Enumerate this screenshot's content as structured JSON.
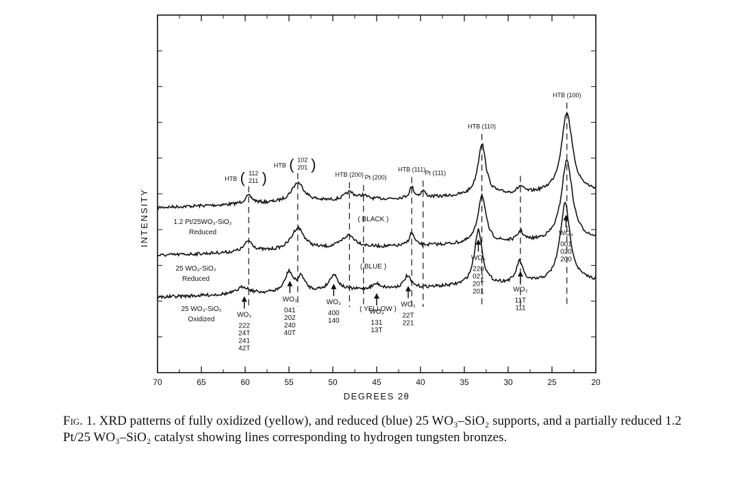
{
  "chart_data": {
    "type": "line",
    "xlabel": "DEGREES 2θ",
    "ylabel": "INTENSITY",
    "xlim": [
      70,
      20
    ],
    "x_ticks": [
      "70",
      "65",
      "60",
      "55",
      "50",
      "45",
      "40",
      "35",
      "30",
      "25",
      "20"
    ],
    "series": [
      {
        "name": "1.2 Pt/25WO3-SiO2 Reduced",
        "label_lines": [
          "1.2 Pt/25WO₃-SiO₂",
          "Reduced"
        ],
        "baseline": 0.0,
        "peaks": [
          [
            59.6,
            0.22,
            0.55
          ],
          [
            54.0,
            0.55,
            0.9
          ],
          [
            48.1,
            0.22,
            0.7
          ],
          [
            46.5,
            0.1,
            0.5
          ],
          [
            41.0,
            0.3,
            0.3
          ],
          [
            39.7,
            0.18,
            0.3
          ],
          [
            33.0,
            1.45,
            0.55
          ],
          [
            28.6,
            0.18,
            0.4
          ],
          [
            23.3,
            2.25,
            0.75
          ]
        ],
        "slope": 0.003
      },
      {
        "name": "25WO3-SiO2 Reduced",
        "label_lines": [
          "25 WO₃-SiO₂",
          "Reduced"
        ],
        "baseline": 0.0,
        "peaks": [
          [
            59.6,
            0.3,
            0.6
          ],
          [
            54.0,
            0.62,
            0.9
          ],
          [
            48.2,
            0.35,
            1.0
          ],
          [
            41.0,
            0.36,
            0.35
          ],
          [
            33.0,
            1.35,
            0.55
          ],
          [
            28.6,
            0.26,
            0.4
          ],
          [
            23.3,
            2.25,
            0.75
          ]
        ],
        "slope": 0.003
      },
      {
        "name": "25WO3-SiO2 Oxidized",
        "label_lines": [
          "25 WO₃-SiO₂",
          "Oxidized"
        ],
        "baseline": 0.0,
        "peaks": [
          [
            60.2,
            0.2,
            0.8
          ],
          [
            55.0,
            0.55,
            0.55
          ],
          [
            53.6,
            0.4,
            0.5
          ],
          [
            49.9,
            0.45,
            0.6
          ],
          [
            45.0,
            0.14,
            0.6
          ],
          [
            41.5,
            0.33,
            0.45
          ],
          [
            33.4,
            1.55,
            0.55
          ],
          [
            28.7,
            0.6,
            0.45
          ],
          [
            23.5,
            2.2,
            0.7
          ]
        ],
        "slope": 0.003
      }
    ],
    "sample_color_labels": [
      "( BLACK )",
      "( BLUE )",
      "( YELLOW )"
    ],
    "htb_annotations": [
      {
        "x": 59.6,
        "label": "HTB",
        "hkl_top": "112",
        "hkl_bottom": "211"
      },
      {
        "x": 54.0,
        "label": "HTB",
        "hkl_top": "102",
        "hkl_bottom": "201"
      },
      {
        "x": 48.1,
        "label": "HTB (200)"
      },
      {
        "x": 46.5,
        "label": "Pt (200)"
      },
      {
        "x": 41.0,
        "label": "HTB (111)"
      },
      {
        "x": 39.7,
        "label": "Pt (111)"
      },
      {
        "x": 33.0,
        "label": "HTB (110)"
      },
      {
        "x": 28.6,
        "label": ""
      },
      {
        "x": 23.3,
        "label": "HTB (100)"
      }
    ],
    "wo3_annotations": [
      {
        "x": 60.1,
        "label": "WO₃",
        "hkl": [
          "222",
          "24T",
          "241",
          "42T"
        ]
      },
      {
        "x": 54.9,
        "label": "WO₃",
        "hkl": [
          "041",
          "202",
          "240",
          "40T"
        ]
      },
      {
        "x": 49.9,
        "label": "WO₃",
        "hkl": [
          "400",
          "140"
        ]
      },
      {
        "x": 45.0,
        "label": "WO₃",
        "hkl": [
          "131",
          "13T"
        ]
      },
      {
        "x": 41.4,
        "label": "WO₃",
        "hkl": [
          "22T",
          "221"
        ]
      },
      {
        "x": 33.4,
        "label": "WO₃",
        "hkl": [
          "220",
          "021",
          "20T",
          "201"
        ]
      },
      {
        "x": 28.6,
        "label": "WO₃",
        "hkl": [
          "11T",
          "111"
        ]
      },
      {
        "x": 23.4,
        "label": "WO₃",
        "hkl": [
          "001",
          "020",
          "200"
        ]
      }
    ]
  },
  "caption": {
    "lead": "Fig. 1.",
    "text": " XRD patterns of fully oxidized (yellow), and reduced (blue) 25 WO₃–SiO₂ supports, and a partially reduced 1.2 Pt/25 WO₃–SiO₂ catalyst showing lines corresponding to hydrogen tungsten bronzes."
  }
}
